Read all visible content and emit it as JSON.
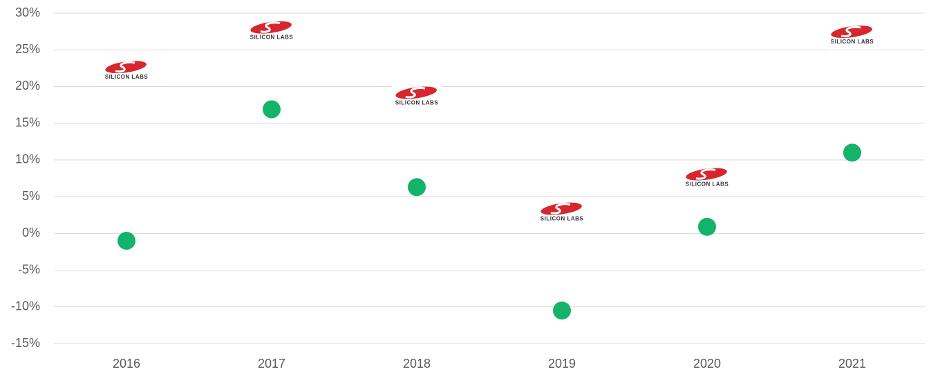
{
  "chart_data": {
    "type": "scatter",
    "categories": [
      "2016",
      "2017",
      "2018",
      "2019",
      "2020",
      "2021"
    ],
    "series": [
      {
        "color": "#13b36a",
        "values": [
          -1,
          16.9,
          6.3,
          -10.5,
          0.9,
          11
        ]
      },
      {
        "marker_text": "SILICON LABS",
        "color": "#d7262e",
        "values": [
          22.1,
          27.5,
          18.6,
          2.8,
          7.5,
          26.9
        ]
      }
    ],
    "ylim": [
      -15,
      30
    ],
    "yticks": [
      {
        "value": -15,
        "label": "-15%"
      },
      {
        "value": -10,
        "label": "-10%"
      },
      {
        "value": -5,
        "label": "-5%"
      },
      {
        "value": 0,
        "label": "0%"
      },
      {
        "value": 5,
        "label": "5%"
      },
      {
        "value": 10,
        "label": "10%"
      },
      {
        "value": 15,
        "label": "15%"
      },
      {
        "value": 20,
        "label": "20%"
      },
      {
        "value": 25,
        "label": "25%"
      },
      {
        "value": 30,
        "label": "30%"
      }
    ],
    "grid": true
  }
}
